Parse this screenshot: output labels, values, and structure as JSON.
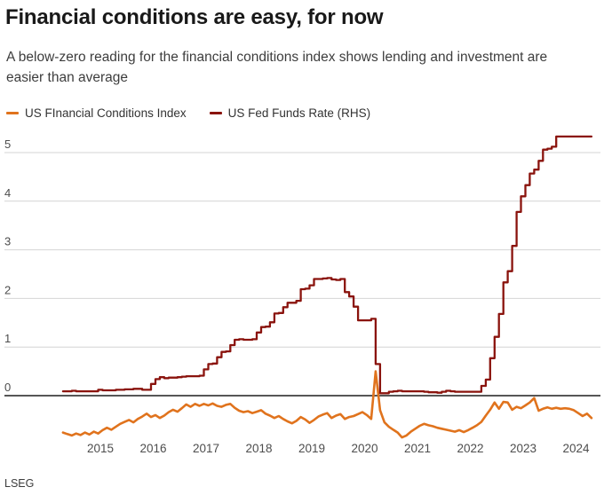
{
  "page": {
    "title": "Financial conditions are easy, for now",
    "subtitle": "A below-zero reading for the financial conditions index shows lending and investment are easier than average",
    "source": "LSEG"
  },
  "legend": {
    "items": [
      {
        "label": "US FInancial Conditions Index",
        "color": "#E0731D"
      },
      {
        "label": "US Fed Funds Rate (RHS)",
        "color": "#8A130D"
      }
    ]
  },
  "chart_data": {
    "type": "line",
    "title": "Financial conditions are easy, for now",
    "subtitle": "A below-zero reading for the financial conditions index shows lending and investment are easier than average",
    "source": "LSEG",
    "x_range": [
      "2014-04",
      "2024-04"
    ],
    "x_interval": "monthly",
    "x_tick_labels": [
      2015,
      2016,
      2017,
      2018,
      2019,
      2020,
      2021,
      2022,
      2023,
      2024
    ],
    "y_ticks": [
      0,
      1,
      2,
      3,
      4,
      5
    ],
    "ylim": [
      -1.15,
      5.6
    ],
    "grid": true,
    "zero_baseline": true,
    "legend_position": "top-left",
    "colors": {
      "gridline": "#d4d4d4",
      "zero_line": "#1f1f1f",
      "tick_text": "#4d4d4d"
    },
    "series": [
      {
        "name": "US FInancial Conditions Index",
        "axis": "LHS",
        "color": "#E0731D",
        "style": "line",
        "width": 2.6,
        "values": [
          -0.76,
          -0.79,
          -0.82,
          -0.78,
          -0.81,
          -0.76,
          -0.8,
          -0.74,
          -0.78,
          -0.71,
          -0.66,
          -0.7,
          -0.64,
          -0.58,
          -0.54,
          -0.5,
          -0.55,
          -0.48,
          -0.43,
          -0.37,
          -0.44,
          -0.4,
          -0.46,
          -0.41,
          -0.34,
          -0.29,
          -0.33,
          -0.26,
          -0.18,
          -0.23,
          -0.17,
          -0.21,
          -0.17,
          -0.2,
          -0.16,
          -0.21,
          -0.23,
          -0.19,
          -0.17,
          -0.25,
          -0.31,
          -0.34,
          -0.32,
          -0.36,
          -0.33,
          -0.3,
          -0.37,
          -0.41,
          -0.46,
          -0.42,
          -0.48,
          -0.53,
          -0.57,
          -0.52,
          -0.44,
          -0.49,
          -0.56,
          -0.5,
          -0.43,
          -0.39,
          -0.36,
          -0.46,
          -0.41,
          -0.38,
          -0.48,
          -0.44,
          -0.42,
          -0.38,
          -0.34,
          -0.4,
          -0.48,
          0.5,
          -0.3,
          -0.55,
          -0.64,
          -0.7,
          -0.76,
          -0.86,
          -0.82,
          -0.74,
          -0.68,
          -0.62,
          -0.58,
          -0.61,
          -0.63,
          -0.66,
          -0.68,
          -0.7,
          -0.72,
          -0.74,
          -0.71,
          -0.75,
          -0.71,
          -0.66,
          -0.61,
          -0.54,
          -0.41,
          -0.29,
          -0.14,
          -0.27,
          -0.13,
          -0.14,
          -0.29,
          -0.23,
          -0.26,
          -0.2,
          -0.14,
          -0.05,
          -0.31,
          -0.27,
          -0.24,
          -0.27,
          -0.25,
          -0.27,
          -0.26,
          -0.27,
          -0.3,
          -0.36,
          -0.42,
          -0.37,
          -0.46
        ]
      },
      {
        "name": "US Fed Funds Rate (RHS)",
        "axis": "RHS",
        "color": "#8A130D",
        "style": "step",
        "width": 2.3,
        "values": [
          0.09,
          0.09,
          0.1,
          0.09,
          0.09,
          0.09,
          0.09,
          0.09,
          0.12,
          0.11,
          0.11,
          0.11,
          0.12,
          0.12,
          0.13,
          0.13,
          0.14,
          0.14,
          0.12,
          0.12,
          0.24,
          0.34,
          0.38,
          0.36,
          0.37,
          0.37,
          0.38,
          0.39,
          0.4,
          0.4,
          0.4,
          0.41,
          0.54,
          0.65,
          0.66,
          0.79,
          0.9,
          0.91,
          1.04,
          1.15,
          1.16,
          1.15,
          1.15,
          1.16,
          1.3,
          1.41,
          1.42,
          1.51,
          1.69,
          1.7,
          1.82,
          1.91,
          1.91,
          1.95,
          2.19,
          2.2,
          2.27,
          2.4,
          2.4,
          2.41,
          2.42,
          2.39,
          2.38,
          2.4,
          2.13,
          2.04,
          1.83,
          1.55,
          1.55,
          1.55,
          1.58,
          0.65,
          0.05,
          0.05,
          0.08,
          0.09,
          0.1,
          0.09,
          0.09,
          0.09,
          0.09,
          0.09,
          0.08,
          0.07,
          0.07,
          0.06,
          0.08,
          0.1,
          0.09,
          0.08,
          0.08,
          0.08,
          0.08,
          0.08,
          0.08,
          0.2,
          0.33,
          0.77,
          1.21,
          1.68,
          2.33,
          2.56,
          3.08,
          3.78,
          4.1,
          4.33,
          4.57,
          4.65,
          4.83,
          5.06,
          5.08,
          5.12,
          5.33,
          5.33,
          5.33,
          5.33,
          5.33,
          5.33,
          5.33,
          5.33,
          5.33
        ]
      }
    ]
  }
}
